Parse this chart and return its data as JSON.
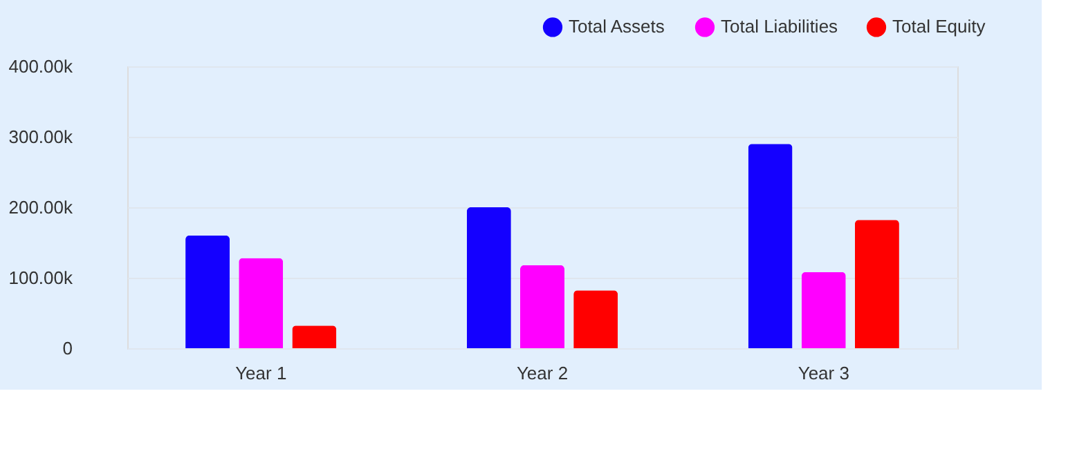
{
  "chart_data": {
    "type": "bar",
    "categories": [
      "Year 1",
      "Year 2",
      "Year 3"
    ],
    "series": [
      {
        "name": "Total Assets",
        "color": "#1400ff",
        "values": [
          160000,
          200000,
          290000
        ]
      },
      {
        "name": "Total Liabilities",
        "color": "#ff00ff",
        "values": [
          128000,
          118000,
          108000
        ]
      },
      {
        "name": "Total Equity",
        "color": "#ff0000",
        "values": [
          32000,
          82000,
          182000
        ]
      }
    ],
    "ylim": [
      0,
      400000
    ],
    "yticks": [
      {
        "value": 0,
        "label": "0"
      },
      {
        "value": 100000,
        "label": "100.00k"
      },
      {
        "value": 200000,
        "label": "200.00k"
      },
      {
        "value": 300000,
        "label": "300.00k"
      },
      {
        "value": 400000,
        "label": "400.00k"
      }
    ],
    "grid": "y",
    "legend": "top right"
  }
}
